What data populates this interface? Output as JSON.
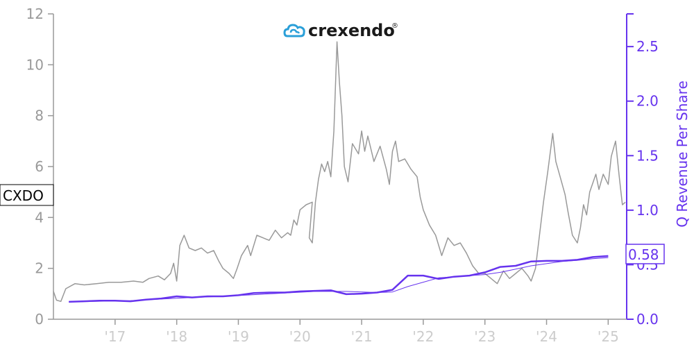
{
  "colors": {
    "price": "#999999",
    "revenue": "#6633ee",
    "revenue_thin": "#6633ee",
    "left_axis": "#999999",
    "right_axis": "#6633ee",
    "x_tick": "#cccccc",
    "logo_icon": "#2a9fd8"
  },
  "logo": {
    "text": "crexendo",
    "registered": "®"
  },
  "ticker_label": "CXDO",
  "right_value_label": "0.58",
  "chart_data": {
    "type": "line",
    "x_tick_labels": [
      "'17",
      "'18",
      "'19",
      "'20",
      "'21",
      "'22",
      "'23",
      "'24",
      "'25"
    ],
    "x_tick_years": [
      2017,
      2018,
      2019,
      2020,
      2021,
      2022,
      2023,
      2024,
      2025
    ],
    "xlim": [
      2016.0,
      2025.3
    ],
    "left_axis": {
      "label": "",
      "ylim": [
        0,
        12
      ],
      "ticks": [
        0,
        2,
        4,
        6,
        8,
        10,
        12
      ]
    },
    "right_axis": {
      "label": "Q Revenue Per Share",
      "ylim": [
        0,
        2.8
      ],
      "ticks": [
        0.0,
        0.5,
        1.0,
        1.5,
        2.0,
        2.5
      ]
    },
    "series": [
      {
        "axis": "left",
        "style": "price",
        "points": [
          [
            2016.0,
            1.1
          ],
          [
            2016.05,
            0.75
          ],
          [
            2016.12,
            0.7
          ],
          [
            2016.2,
            1.2
          ],
          [
            2016.35,
            1.4
          ],
          [
            2016.5,
            1.35
          ],
          [
            2016.7,
            1.4
          ],
          [
            2016.9,
            1.45
          ],
          [
            2017.1,
            1.45
          ],
          [
            2017.3,
            1.5
          ],
          [
            2017.45,
            1.45
          ],
          [
            2017.55,
            1.6
          ],
          [
            2017.7,
            1.7
          ],
          [
            2017.8,
            1.55
          ],
          [
            2017.9,
            1.8
          ],
          [
            2017.95,
            2.2
          ],
          [
            2018.0,
            1.5
          ],
          [
            2018.05,
            2.9
          ],
          [
            2018.12,
            3.3
          ],
          [
            2018.2,
            2.8
          ],
          [
            2018.3,
            2.7
          ],
          [
            2018.4,
            2.8
          ],
          [
            2018.5,
            2.6
          ],
          [
            2018.6,
            2.7
          ],
          [
            2018.68,
            2.3
          ],
          [
            2018.75,
            2.0
          ],
          [
            2018.85,
            1.8
          ],
          [
            2018.92,
            1.6
          ],
          [
            2018.98,
            2.0
          ],
          [
            2019.05,
            2.5
          ],
          [
            2019.15,
            2.9
          ],
          [
            2019.2,
            2.5
          ],
          [
            2019.3,
            3.3
          ],
          [
            2019.4,
            3.2
          ],
          [
            2019.5,
            3.1
          ],
          [
            2019.6,
            3.5
          ],
          [
            2019.7,
            3.2
          ],
          [
            2019.8,
            3.4
          ],
          [
            2019.85,
            3.3
          ],
          [
            2019.9,
            3.9
          ],
          [
            2019.95,
            3.7
          ],
          [
            2020.0,
            4.3
          ],
          [
            2020.1,
            4.5
          ],
          [
            2020.2,
            4.6
          ],
          [
            2020.15,
            3.2
          ],
          [
            2020.2,
            3.0
          ],
          [
            2020.25,
            4.6
          ],
          [
            2020.3,
            5.5
          ],
          [
            2020.35,
            6.1
          ],
          [
            2020.4,
            5.8
          ],
          [
            2020.45,
            6.2
          ],
          [
            2020.5,
            5.6
          ],
          [
            2020.55,
            7.4
          ],
          [
            2020.6,
            10.9
          ],
          [
            2020.64,
            9.3
          ],
          [
            2020.68,
            8.0
          ],
          [
            2020.72,
            6.0
          ],
          [
            2020.78,
            5.4
          ],
          [
            2020.85,
            6.9
          ],
          [
            2020.95,
            6.5
          ],
          [
            2021.0,
            7.4
          ],
          [
            2021.05,
            6.6
          ],
          [
            2021.1,
            7.2
          ],
          [
            2021.2,
            6.2
          ],
          [
            2021.3,
            6.8
          ],
          [
            2021.4,
            5.9
          ],
          [
            2021.45,
            5.3
          ],
          [
            2021.5,
            6.6
          ],
          [
            2021.55,
            7.0
          ],
          [
            2021.6,
            6.2
          ],
          [
            2021.7,
            6.3
          ],
          [
            2021.8,
            5.9
          ],
          [
            2021.9,
            5.6
          ],
          [
            2021.95,
            4.8
          ],
          [
            2022.0,
            4.3
          ],
          [
            2022.1,
            3.7
          ],
          [
            2022.2,
            3.3
          ],
          [
            2022.3,
            2.5
          ],
          [
            2022.4,
            3.2
          ],
          [
            2022.5,
            2.9
          ],
          [
            2022.6,
            3.0
          ],
          [
            2022.7,
            2.6
          ],
          [
            2022.8,
            2.1
          ],
          [
            2022.9,
            1.8
          ],
          [
            2023.0,
            1.8
          ],
          [
            2023.1,
            1.6
          ],
          [
            2023.2,
            1.4
          ],
          [
            2023.3,
            1.9
          ],
          [
            2023.4,
            1.6
          ],
          [
            2023.5,
            1.8
          ],
          [
            2023.6,
            2.0
          ],
          [
            2023.7,
            1.7
          ],
          [
            2023.75,
            1.5
          ],
          [
            2023.82,
            2.0
          ],
          [
            2023.88,
            3.2
          ],
          [
            2023.95,
            4.6
          ],
          [
            2024.02,
            5.8
          ],
          [
            2024.1,
            7.3
          ],
          [
            2024.15,
            6.2
          ],
          [
            2024.22,
            5.6
          ],
          [
            2024.3,
            4.9
          ],
          [
            2024.35,
            4.2
          ],
          [
            2024.42,
            3.3
          ],
          [
            2024.5,
            3.0
          ],
          [
            2024.55,
            3.6
          ],
          [
            2024.6,
            4.5
          ],
          [
            2024.65,
            4.1
          ],
          [
            2024.7,
            5.0
          ],
          [
            2024.8,
            5.7
          ],
          [
            2024.85,
            5.1
          ],
          [
            2024.92,
            5.7
          ],
          [
            2025.0,
            5.3
          ],
          [
            2025.05,
            6.4
          ],
          [
            2025.12,
            7.0
          ],
          [
            2025.18,
            5.6
          ],
          [
            2025.23,
            4.5
          ],
          [
            2025.28,
            4.6
          ]
        ]
      },
      {
        "axis": "right",
        "style": "revenue",
        "points": [
          [
            2016.25,
            0.16
          ],
          [
            2016.5,
            0.165
          ],
          [
            2016.75,
            0.17
          ],
          [
            2017.0,
            0.17
          ],
          [
            2017.25,
            0.165
          ],
          [
            2017.5,
            0.18
          ],
          [
            2017.75,
            0.19
          ],
          [
            2018.0,
            0.21
          ],
          [
            2018.25,
            0.2
          ],
          [
            2018.5,
            0.21
          ],
          [
            2018.75,
            0.21
          ],
          [
            2019.0,
            0.22
          ],
          [
            2019.25,
            0.24
          ],
          [
            2019.5,
            0.245
          ],
          [
            2019.75,
            0.245
          ],
          [
            2020.0,
            0.255
          ],
          [
            2020.25,
            0.26
          ],
          [
            2020.5,
            0.265
          ],
          [
            2020.75,
            0.23
          ],
          [
            2021.0,
            0.235
          ],
          [
            2021.25,
            0.245
          ],
          [
            2021.5,
            0.27
          ],
          [
            2021.75,
            0.4
          ],
          [
            2022.0,
            0.4
          ],
          [
            2022.25,
            0.37
          ],
          [
            2022.5,
            0.39
          ],
          [
            2022.75,
            0.4
          ],
          [
            2023.0,
            0.43
          ],
          [
            2023.25,
            0.48
          ],
          [
            2023.5,
            0.49
          ],
          [
            2023.75,
            0.53
          ],
          [
            2024.0,
            0.535
          ],
          [
            2024.25,
            0.535
          ],
          [
            2024.5,
            0.545
          ],
          [
            2024.75,
            0.57
          ],
          [
            2025.0,
            0.58
          ]
        ]
      },
      {
        "axis": "right",
        "style": "revenue_thin",
        "points": [
          [
            2016.25,
            0.16
          ],
          [
            2016.75,
            0.165
          ],
          [
            2017.25,
            0.17
          ],
          [
            2017.75,
            0.185
          ],
          [
            2018.25,
            0.2
          ],
          [
            2018.75,
            0.21
          ],
          [
            2019.25,
            0.225
          ],
          [
            2019.75,
            0.24
          ],
          [
            2020.25,
            0.255
          ],
          [
            2020.75,
            0.255
          ],
          [
            2021.25,
            0.245
          ],
          [
            2021.5,
            0.25
          ],
          [
            2021.75,
            0.3
          ],
          [
            2022.0,
            0.34
          ],
          [
            2022.25,
            0.38
          ],
          [
            2022.5,
            0.39
          ],
          [
            2022.75,
            0.4
          ],
          [
            2023.0,
            0.41
          ],
          [
            2023.25,
            0.43
          ],
          [
            2023.5,
            0.46
          ],
          [
            2023.75,
            0.49
          ],
          [
            2024.0,
            0.51
          ],
          [
            2024.25,
            0.53
          ],
          [
            2024.5,
            0.54
          ],
          [
            2024.75,
            0.555
          ],
          [
            2025.0,
            0.565
          ]
        ]
      }
    ]
  }
}
